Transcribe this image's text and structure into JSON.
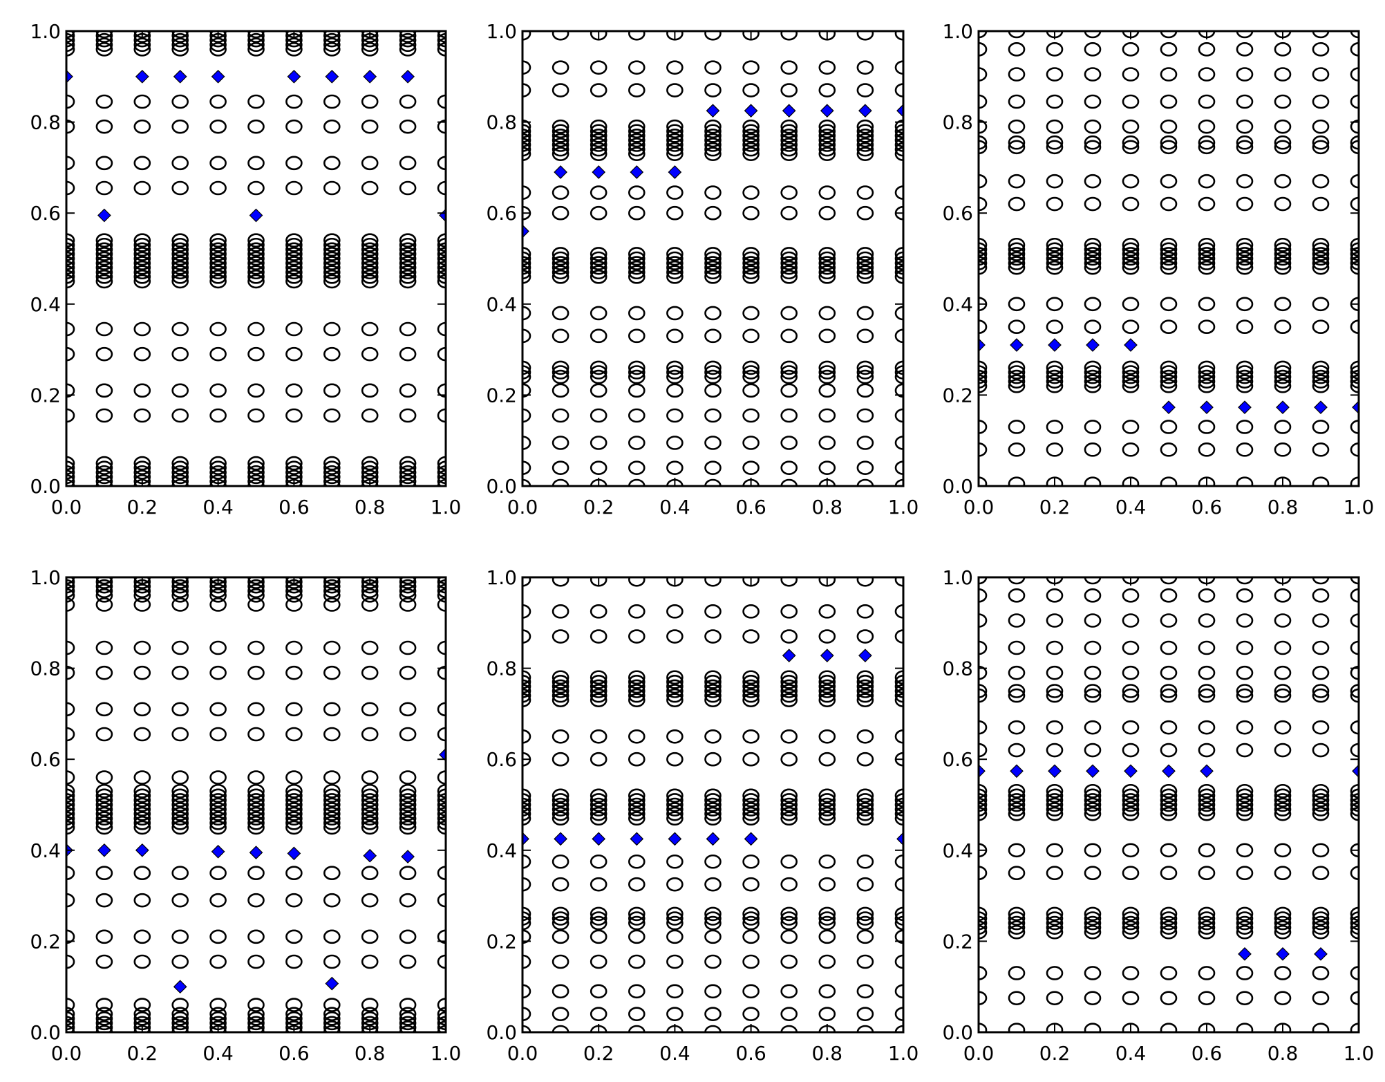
{
  "chart_data": [
    {
      "type": "scatter",
      "xlim": [
        0,
        1
      ],
      "ylim": [
        0,
        1
      ],
      "x_ticks": [
        "0.0",
        "0.2",
        "0.4",
        "0.6",
        "0.8",
        "1.0"
      ],
      "y_ticks": [
        "0.0",
        "0.2",
        "0.4",
        "0.6",
        "0.8",
        "1.0"
      ],
      "grid": false,
      "circle_x": [
        0,
        0.1,
        0.2,
        0.3,
        0.4,
        0.5,
        0.6,
        0.7,
        0.8,
        0.9,
        1.0
      ],
      "circle_y": [
        1.0,
        0.99,
        0.98,
        0.97,
        0.96,
        0.845,
        0.79,
        0.71,
        0.655,
        0.54,
        0.53,
        0.52,
        0.51,
        0.5,
        0.49,
        0.48,
        0.47,
        0.46,
        0.45,
        0.345,
        0.29,
        0.21,
        0.155,
        0.05,
        0.04,
        0.03,
        0.02,
        0.01,
        0.0
      ],
      "diamonds": [
        [
          0,
          0.9
        ],
        [
          0.2,
          0.9
        ],
        [
          0.3,
          0.9
        ],
        [
          0.4,
          0.9
        ],
        [
          0.6,
          0.9
        ],
        [
          0.7,
          0.9
        ],
        [
          0.8,
          0.9
        ],
        [
          0.9,
          0.9
        ],
        [
          0.1,
          0.595
        ],
        [
          0.5,
          0.595
        ],
        [
          1.0,
          0.595
        ]
      ]
    },
    {
      "type": "scatter",
      "xlim": [
        0,
        1
      ],
      "ylim": [
        0,
        1
      ],
      "x_ticks": [
        "0.0",
        "0.2",
        "0.4",
        "0.6",
        "0.8",
        "1.0"
      ],
      "y_ticks": [
        "0.0",
        "0.2",
        "0.4",
        "0.6",
        "0.8",
        "1.0"
      ],
      "grid": false,
      "circle_x": [
        0,
        0.1,
        0.2,
        0.3,
        0.4,
        0.5,
        0.6,
        0.7,
        0.8,
        0.9,
        1.0
      ],
      "circle_y": [
        0.995,
        0.92,
        0.87,
        0.79,
        0.78,
        0.77,
        0.76,
        0.75,
        0.74,
        0.73,
        0.645,
        0.6,
        0.51,
        0.5,
        0.49,
        0.48,
        0.47,
        0.46,
        0.38,
        0.33,
        0.26,
        0.25,
        0.24,
        0.21,
        0.155,
        0.095,
        0.04,
        0.0
      ],
      "diamonds": [
        [
          0,
          0.56
        ],
        [
          0.1,
          0.69
        ],
        [
          0.2,
          0.69
        ],
        [
          0.3,
          0.69
        ],
        [
          0.4,
          0.69
        ],
        [
          0.5,
          0.825
        ],
        [
          0.6,
          0.825
        ],
        [
          0.7,
          0.825
        ],
        [
          0.8,
          0.825
        ],
        [
          0.9,
          0.825
        ],
        [
          1.0,
          0.825
        ]
      ]
    },
    {
      "type": "scatter",
      "xlim": [
        0,
        1
      ],
      "ylim": [
        0,
        1
      ],
      "x_ticks": [
        "0.0",
        "0.2",
        "0.4",
        "0.6",
        "0.8",
        "1.0"
      ],
      "y_ticks": [
        "0.0",
        "0.2",
        "0.4",
        "0.6",
        "0.8",
        "1.0"
      ],
      "grid": false,
      "circle_x": [
        0,
        0.1,
        0.2,
        0.3,
        0.4,
        0.5,
        0.6,
        0.7,
        0.8,
        0.9,
        1.0
      ],
      "circle_y": [
        1.0,
        0.96,
        0.905,
        0.845,
        0.79,
        0.755,
        0.745,
        0.67,
        0.62,
        0.53,
        0.52,
        0.51,
        0.5,
        0.49,
        0.48,
        0.4,
        0.35,
        0.26,
        0.25,
        0.24,
        0.23,
        0.22,
        0.13,
        0.08,
        0.005
      ],
      "diamonds": [
        [
          0,
          0.31
        ],
        [
          0.1,
          0.31
        ],
        [
          0.2,
          0.31
        ],
        [
          0.3,
          0.31
        ],
        [
          0.4,
          0.31
        ],
        [
          0.5,
          0.173
        ],
        [
          0.6,
          0.173
        ],
        [
          0.7,
          0.173
        ],
        [
          0.8,
          0.173
        ],
        [
          0.9,
          0.173
        ],
        [
          1.0,
          0.173
        ]
      ]
    },
    {
      "type": "scatter",
      "xlim": [
        0,
        1
      ],
      "ylim": [
        0,
        1
      ],
      "x_ticks": [
        "0.0",
        "0.2",
        "0.4",
        "0.6",
        "0.8",
        "1.0"
      ],
      "y_ticks": [
        "0.0",
        "0.2",
        "0.4",
        "0.6",
        "0.8",
        "1.0"
      ],
      "grid": false,
      "circle_x": [
        0,
        0.1,
        0.2,
        0.3,
        0.4,
        0.5,
        0.6,
        0.7,
        0.8,
        0.9,
        1.0
      ],
      "circle_y": [
        1.0,
        0.99,
        0.98,
        0.97,
        0.96,
        0.94,
        0.845,
        0.79,
        0.71,
        0.655,
        0.56,
        0.53,
        0.52,
        0.51,
        0.5,
        0.49,
        0.48,
        0.47,
        0.46,
        0.45,
        0.35,
        0.29,
        0.21,
        0.155,
        0.06,
        0.04,
        0.03,
        0.02,
        0.01,
        0.0
      ],
      "diamonds": [
        [
          0,
          0.4
        ],
        [
          0.1,
          0.4
        ],
        [
          0.2,
          0.4
        ],
        [
          0.4,
          0.397
        ],
        [
          0.5,
          0.395
        ],
        [
          0.6,
          0.393
        ],
        [
          0.8,
          0.388
        ],
        [
          0.9,
          0.386
        ],
        [
          1.0,
          0.61
        ],
        [
          0.3,
          0.1
        ],
        [
          0.7,
          0.107
        ]
      ]
    },
    {
      "type": "scatter",
      "xlim": [
        0,
        1
      ],
      "ylim": [
        0,
        1
      ],
      "x_ticks": [
        "0.0",
        "0.2",
        "0.4",
        "0.6",
        "0.8",
        "1.0"
      ],
      "y_ticks": [
        "0.0",
        "0.2",
        "0.4",
        "0.6",
        "0.8",
        "1.0"
      ],
      "grid": false,
      "circle_x": [
        0,
        0.1,
        0.2,
        0.3,
        0.4,
        0.5,
        0.6,
        0.7,
        0.8,
        0.9,
        1.0
      ],
      "circle_y": [
        0.995,
        0.925,
        0.87,
        0.78,
        0.77,
        0.76,
        0.75,
        0.74,
        0.73,
        0.65,
        0.6,
        0.52,
        0.51,
        0.5,
        0.49,
        0.48,
        0.47,
        0.375,
        0.325,
        0.26,
        0.25,
        0.24,
        0.21,
        0.155,
        0.09,
        0.04,
        0.0
      ],
      "diamonds": [
        [
          0,
          0.425
        ],
        [
          0.1,
          0.425
        ],
        [
          0.2,
          0.425
        ],
        [
          0.3,
          0.425
        ],
        [
          0.4,
          0.425
        ],
        [
          0.5,
          0.425
        ],
        [
          0.6,
          0.425
        ],
        [
          1.0,
          0.425
        ],
        [
          0.7,
          0.828
        ],
        [
          0.8,
          0.828
        ],
        [
          0.9,
          0.828
        ]
      ]
    },
    {
      "type": "scatter",
      "xlim": [
        0,
        1
      ],
      "ylim": [
        0,
        1
      ],
      "x_ticks": [
        "0.0",
        "0.2",
        "0.4",
        "0.6",
        "0.8",
        "1.0"
      ],
      "y_ticks": [
        "0.0",
        "0.2",
        "0.4",
        "0.6",
        "0.8",
        "1.0"
      ],
      "grid": false,
      "circle_x": [
        0,
        0.1,
        0.2,
        0.3,
        0.4,
        0.5,
        0.6,
        0.7,
        0.8,
        0.9,
        1.0
      ],
      "circle_y": [
        1.0,
        0.96,
        0.905,
        0.845,
        0.79,
        0.75,
        0.74,
        0.67,
        0.62,
        0.53,
        0.52,
        0.51,
        0.5,
        0.49,
        0.48,
        0.4,
        0.35,
        0.26,
        0.25,
        0.24,
        0.23,
        0.22,
        0.13,
        0.075,
        0.005
      ],
      "diamonds": [
        [
          0,
          0.574
        ],
        [
          0.1,
          0.574
        ],
        [
          0.2,
          0.574
        ],
        [
          0.3,
          0.574
        ],
        [
          0.4,
          0.574
        ],
        [
          0.5,
          0.574
        ],
        [
          0.6,
          0.574
        ],
        [
          1.0,
          0.574
        ],
        [
          0.7,
          0.172
        ],
        [
          0.8,
          0.172
        ],
        [
          0.9,
          0.172
        ]
      ]
    }
  ],
  "colors": {
    "circle_edge": "#000000",
    "circle_fill": "none",
    "diamond_fill": "#0000ff",
    "diamond_edge": "#000000",
    "axes": "#000000"
  }
}
